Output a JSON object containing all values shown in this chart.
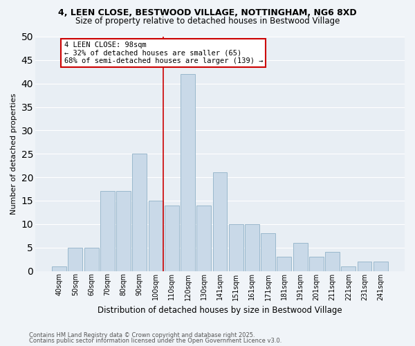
{
  "title1": "4, LEEN CLOSE, BESTWOOD VILLAGE, NOTTINGHAM, NG6 8XD",
  "title2": "Size of property relative to detached houses in Bestwood Village",
  "xlabel": "Distribution of detached houses by size in Bestwood Village",
  "ylabel": "Number of detached properties",
  "bar_color": "#c9d9e8",
  "bar_edge_color": "#9ab8cc",
  "background_color": "#e8eef4",
  "grid_color": "#ffffff",
  "categories": [
    "40sqm",
    "50sqm",
    "60sqm",
    "70sqm",
    "80sqm",
    "90sqm",
    "100sqm",
    "110sqm",
    "120sqm",
    "130sqm",
    "141sqm",
    "151sqm",
    "161sqm",
    "171sqm",
    "181sqm",
    "191sqm",
    "201sqm",
    "211sqm",
    "221sqm",
    "231sqm",
    "241sqm"
  ],
  "values": [
    1,
    5,
    5,
    17,
    17,
    25,
    15,
    14,
    42,
    14,
    21,
    10,
    10,
    8,
    3,
    6,
    3,
    4,
    1,
    2,
    2
  ],
  "red_line_index": 6,
  "annotation_text": "4 LEEN CLOSE: 98sqm\n← 32% of detached houses are smaller (65)\n68% of semi-detached houses are larger (139) →",
  "annotation_box_color": "#ffffff",
  "annotation_edge_color": "#cc0000",
  "red_line_color": "#cc0000",
  "ylim": [
    0,
    50
  ],
  "yticks": [
    0,
    5,
    10,
    15,
    20,
    25,
    30,
    35,
    40,
    45,
    50
  ],
  "footer1": "Contains HM Land Registry data © Crown copyright and database right 2025.",
  "footer2": "Contains public sector information licensed under the Open Government Licence v3.0.",
  "fig_bg": "#f0f4f8"
}
